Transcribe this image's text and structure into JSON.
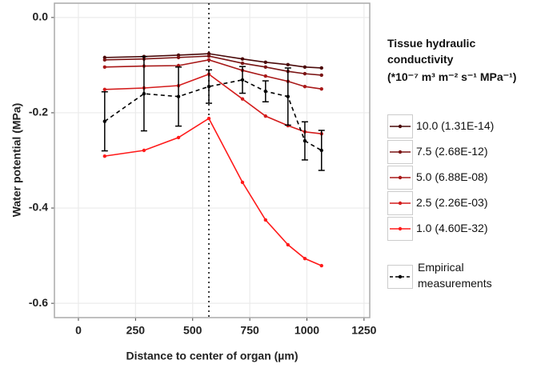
{
  "chart_data": {
    "type": "line",
    "y_label": "Water potential (MPa)",
    "x_label": "Distance to center of organ (µm)",
    "legend_title": "Tissue hydraulic conductivity",
    "legend_subtitle": "(*10⁻⁷ m³ m⁻² s⁻¹ MPa⁻¹)",
    "legend_position": "right",
    "grid": true,
    "vline": 571,
    "x": [
      115,
      287,
      438,
      571,
      718,
      819,
      917,
      991,
      1064
    ],
    "xlim": [
      -105,
      1275
    ],
    "xticks": [
      0,
      250,
      500,
      750,
      1000,
      1250
    ],
    "ylim": [
      -0.63,
      0.03
    ],
    "yticks": [
      {
        "value": 0,
        "label": "0.0"
      },
      -0.2,
      -0.4,
      -0.6
    ],
    "series": [
      {
        "name": "10.0 (1.31E-14)",
        "color": "#4a0a0a",
        "values": [
          -0.084,
          -0.082,
          -0.079,
          -0.076,
          -0.087,
          -0.094,
          -0.099,
          -0.104,
          -0.106
        ]
      },
      {
        "name": "7.5 (2.68E-12)",
        "color": "#7a1414",
        "values": [
          -0.089,
          -0.087,
          -0.084,
          -0.081,
          -0.096,
          -0.104,
          -0.113,
          -0.118,
          -0.121
        ]
      },
      {
        "name": "5.0 (6.88E-08)",
        "color": "#a81818",
        "values": [
          -0.104,
          -0.102,
          -0.101,
          -0.089,
          -0.111,
          -0.123,
          -0.134,
          -0.145,
          -0.15
        ]
      },
      {
        "name": "2.5 (2.26E-03)",
        "color": "#d41c1c",
        "values": [
          -0.151,
          -0.148,
          -0.143,
          -0.119,
          -0.171,
          -0.207,
          -0.227,
          -0.24,
          -0.244
        ]
      },
      {
        "name": "1.0 (4.60E-32)",
        "color": "#ff1a1a",
        "values": [
          -0.291,
          -0.279,
          -0.252,
          -0.212,
          -0.346,
          -0.425,
          -0.477,
          -0.506,
          -0.521
        ]
      },
      {
        "name": "Empirical measurements",
        "color": "#000000",
        "dashed": true,
        "values": [
          -0.218,
          -0.16,
          -0.166,
          -0.145,
          -0.131,
          -0.155,
          -0.166,
          -0.259,
          -0.279
        ],
        "errors": [
          0.062,
          0.078,
          0.062,
          0.035,
          0.028,
          0.022,
          0.06,
          0.04,
          0.042
        ]
      }
    ]
  }
}
